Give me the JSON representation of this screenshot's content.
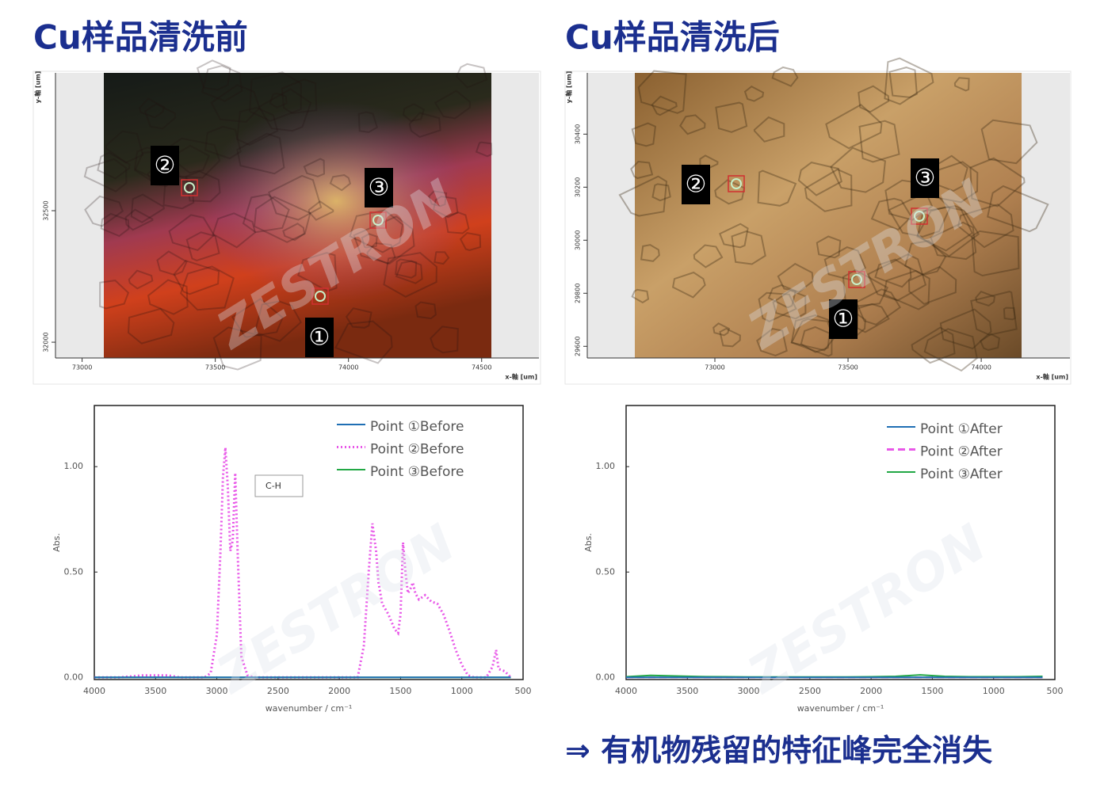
{
  "titles": [
    "Cu样品清洗前",
    "Cu样品清洗后"
  ],
  "conclusion": "⇒ 有机物残留的特征峰完全消失",
  "watermark": "ZESTRON",
  "images": [
    {
      "xlabel": "x-軸 [um]",
      "ylabel": "y-軸 [um]",
      "xlim": [
        72900,
        74715
      ],
      "xticks": [
        73000,
        73500,
        74000,
        74500
      ],
      "ylim": [
        31940,
        33024
      ],
      "yticks": [
        32000,
        32500
      ],
      "points": [
        "①",
        "②",
        "③"
      ]
    },
    {
      "xlabel": "x-軸 [um]",
      "ylabel": "y-軸 [um]",
      "xlim": [
        72521,
        74333
      ],
      "xticks": [
        73000,
        73500,
        74000
      ],
      "ylim": [
        29556,
        30631
      ],
      "yticks": [
        29600,
        29800,
        30000,
        30200,
        30400
      ],
      "points": [
        "①",
        "②",
        "③"
      ]
    }
  ],
  "chart_data": [
    {
      "type": "line",
      "xlabel": "wavenumber / cm⁻¹",
      "ylabel": "Abs.",
      "annotation": "C-H",
      "legend": "upper right",
      "xlim": [
        4000,
        500
      ],
      "xticks": [
        4000,
        3500,
        3000,
        2500,
        2000,
        1500,
        1000,
        500
      ],
      "ylim": [
        -0.01,
        1.29
      ],
      "yticks": [
        {
          "value": 0,
          "label": "0.00"
        },
        {
          "value": 0.5,
          "label": "0.50"
        },
        {
          "value": 1,
          "label": "1.00"
        }
      ],
      "x": [
        4000,
        3800,
        3600,
        3500,
        3400,
        3300,
        3200,
        3100,
        3050,
        3000,
        2970,
        2950,
        2930,
        2910,
        2890,
        2870,
        2850,
        2830,
        2800,
        2750,
        2700,
        2500,
        2200,
        2000,
        1850,
        1800,
        1760,
        1730,
        1700,
        1680,
        1650,
        1600,
        1550,
        1520,
        1500,
        1480,
        1460,
        1440,
        1420,
        1400,
        1380,
        1350,
        1300,
        1250,
        1200,
        1150,
        1100,
        1050,
        1000,
        950,
        900,
        800,
        750,
        720,
        700,
        650,
        600
      ],
      "series": [
        {
          "name": "Point ①Before",
          "color": "#1f6fb4",
          "line_style": "solid",
          "values": [
            0,
            0,
            0,
            0,
            0,
            0,
            0,
            0,
            0,
            0,
            0,
            0,
            0,
            0,
            0,
            0,
            0,
            0,
            0,
            0,
            0,
            0,
            0,
            0,
            0,
            0,
            0,
            0,
            0,
            0,
            0,
            0,
            0,
            0,
            0,
            0,
            0,
            0,
            0,
            0,
            0,
            0,
            0,
            0,
            0,
            0,
            0,
            0,
            0,
            0,
            0,
            0,
            0,
            0,
            0,
            0,
            0
          ]
        },
        {
          "name": "Point ②Before",
          "color": "#e858e8",
          "line_style": "dotted",
          "values": [
            0,
            0,
            0.01,
            0.01,
            0.01,
            0,
            0,
            0,
            0.02,
            0.2,
            0.6,
            0.95,
            1.09,
            0.9,
            0.6,
            0.65,
            0.97,
            0.6,
            0.1,
            0.01,
            0,
            0,
            0,
            0,
            0,
            0.15,
            0.5,
            0.73,
            0.6,
            0.45,
            0.35,
            0.3,
            0.23,
            0.21,
            0.3,
            0.64,
            0.5,
            0.4,
            0.42,
            0.45,
            0.4,
            0.37,
            0.39,
            0.36,
            0.35,
            0.3,
            0.22,
            0.13,
            0.06,
            0.01,
            0,
            0,
            0.05,
            0.13,
            0.04,
            0.03,
            0
          ]
        },
        {
          "name": "Point ③Before",
          "color": "#22a845",
          "line_style": "solid",
          "values": [
            0,
            0,
            0,
            0,
            0,
            0,
            0,
            0,
            0,
            0,
            0,
            0,
            0,
            0,
            0,
            0,
            0,
            0,
            0,
            0,
            0,
            0,
            0,
            0,
            0,
            0,
            0,
            0,
            0,
            0,
            0,
            0,
            0,
            0,
            0,
            0,
            0,
            0,
            0,
            0,
            0,
            0,
            0,
            0,
            0,
            0,
            0,
            0,
            0,
            0,
            0,
            0,
            0,
            0,
            0,
            0,
            0
          ]
        }
      ]
    },
    {
      "type": "line",
      "xlabel": "wavenumber / cm⁻¹",
      "ylabel": "Abs.",
      "legend": "upper right",
      "xlim": [
        4000,
        500
      ],
      "xticks": [
        4000,
        3500,
        3000,
        2500,
        2000,
        1500,
        1000,
        500
      ],
      "ylim": [
        -0.01,
        1.29
      ],
      "yticks": [
        {
          "value": 0,
          "label": "0.00"
        },
        {
          "value": 0.5,
          "label": "0.50"
        },
        {
          "value": 1,
          "label": "1.00"
        }
      ],
      "x": [
        4000,
        3800,
        3600,
        3400,
        3200,
        3000,
        2800,
        2600,
        2400,
        2200,
        2000,
        1800,
        1600,
        1400,
        1200,
        1000,
        800,
        600
      ],
      "series": [
        {
          "name": "Point ①After",
          "color": "#1f6fb4",
          "line_style": "solid",
          "values": [
            0,
            0,
            0,
            0,
            0,
            0,
            0,
            0,
            0,
            0,
            0,
            0,
            0,
            0,
            0,
            0,
            0,
            0
          ]
        },
        {
          "name": "Point ②After",
          "color": "#e858e8",
          "line_style": "dashed",
          "values": [
            0,
            0,
            0,
            0,
            0,
            0,
            0,
            0,
            0,
            0,
            0,
            0,
            0,
            0,
            0,
            0,
            0,
            0
          ]
        },
        {
          "name": "Point ③After",
          "color": "#22a845",
          "line_style": "solid",
          "values": [
            0.003,
            0.01,
            0.007,
            0.004,
            0.003,
            0.002,
            0.002,
            0.002,
            0.002,
            0.002,
            0.003,
            0.005,
            0.012,
            0.005,
            0.003,
            0.003,
            0.003,
            0.005
          ]
        }
      ]
    }
  ]
}
